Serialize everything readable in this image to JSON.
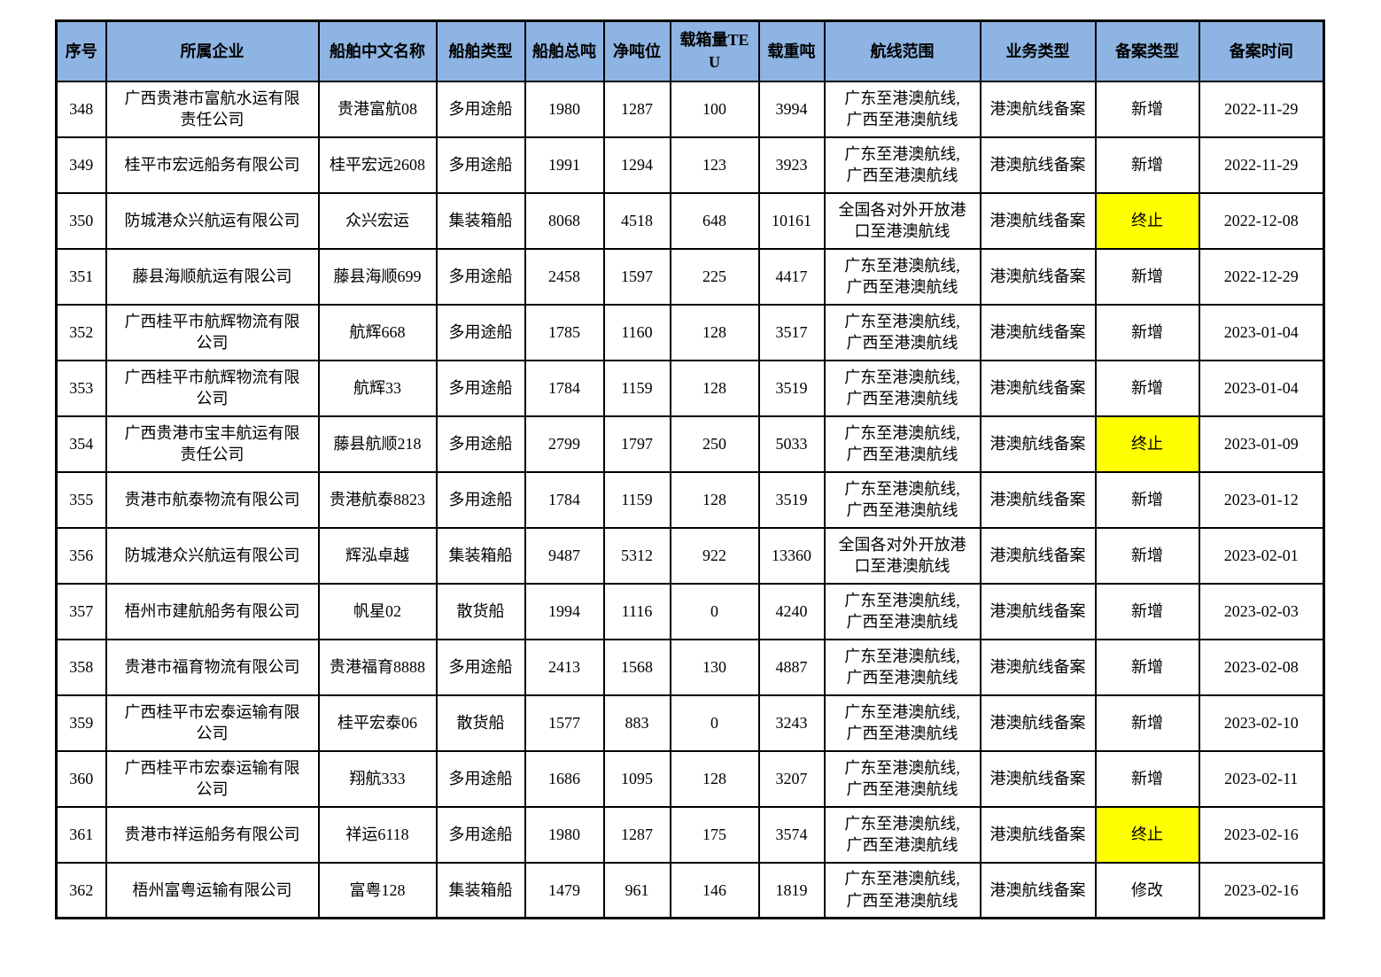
{
  "colors": {
    "header_bg": "#8DB4E2",
    "highlight": "#FFFF00",
    "border": "#000000",
    "text": "#000000",
    "page_bg": "#FFFFFF"
  },
  "table": {
    "headers": [
      "序号",
      "所属企业",
      "船舶中文名称",
      "船舶类型",
      "船舶总吨",
      "净吨位",
      "载箱量TEU",
      "载重吨",
      "航线范围",
      "业务类型",
      "备案类型",
      "备案时间"
    ],
    "column_keys": [
      "seq",
      "company",
      "ship_name",
      "ship_type",
      "gross",
      "net",
      "teu",
      "deadweight",
      "route",
      "business_type",
      "filing_type",
      "filing_date"
    ],
    "rows": [
      {
        "seq": "348",
        "company": "广西贵港市富航水运有限\n责任公司",
        "ship_name": "贵港富航08",
        "ship_type": "多用途船",
        "gross": "1980",
        "net": "1287",
        "teu": "100",
        "deadweight": "3994",
        "route": "广东至港澳航线,\n广西至港澳航线",
        "business_type": "港澳航线备案",
        "filing_type": "新增",
        "filing_highlight": false,
        "filing_date": "2022-11-29"
      },
      {
        "seq": "349",
        "company": "桂平市宏远船务有限公司",
        "ship_name": "桂平宏远2608",
        "ship_type": "多用途船",
        "gross": "1991",
        "net": "1294",
        "teu": "123",
        "deadweight": "3923",
        "route": "广东至港澳航线,\n广西至港澳航线",
        "business_type": "港澳航线备案",
        "filing_type": "新增",
        "filing_highlight": false,
        "filing_date": "2022-11-29"
      },
      {
        "seq": "350",
        "company": "防城港众兴航运有限公司",
        "ship_name": "众兴宏运",
        "ship_type": "集装箱船",
        "gross": "8068",
        "net": "4518",
        "teu": "648",
        "deadweight": "10161",
        "route": "全国各对外开放港\n口至港澳航线",
        "business_type": "港澳航线备案",
        "filing_type": "终止",
        "filing_highlight": true,
        "filing_date": "2022-12-08"
      },
      {
        "seq": "351",
        "company": "藤县海顺航运有限公司",
        "ship_name": "藤县海顺699",
        "ship_type": "多用途船",
        "gross": "2458",
        "net": "1597",
        "teu": "225",
        "deadweight": "4417",
        "route": "广东至港澳航线,\n广西至港澳航线",
        "business_type": "港澳航线备案",
        "filing_type": "新增",
        "filing_highlight": false,
        "filing_date": "2022-12-29"
      },
      {
        "seq": "352",
        "company": "广西桂平市航辉物流有限\n公司",
        "ship_name": "航辉668",
        "ship_type": "多用途船",
        "gross": "1785",
        "net": "1160",
        "teu": "128",
        "deadweight": "3517",
        "route": "广东至港澳航线,\n广西至港澳航线",
        "business_type": "港澳航线备案",
        "filing_type": "新增",
        "filing_highlight": false,
        "filing_date": "2023-01-04"
      },
      {
        "seq": "353",
        "company": "广西桂平市航辉物流有限\n公司",
        "ship_name": "航辉33",
        "ship_type": "多用途船",
        "gross": "1784",
        "net": "1159",
        "teu": "128",
        "deadweight": "3519",
        "route": "广东至港澳航线,\n广西至港澳航线",
        "business_type": "港澳航线备案",
        "filing_type": "新增",
        "filing_highlight": false,
        "filing_date": "2023-01-04"
      },
      {
        "seq": "354",
        "company": "广西贵港市宝丰航运有限\n责任公司",
        "ship_name": "藤县航顺218",
        "ship_type": "多用途船",
        "gross": "2799",
        "net": "1797",
        "teu": "250",
        "deadweight": "5033",
        "route": "广东至港澳航线,\n广西至港澳航线",
        "business_type": "港澳航线备案",
        "filing_type": "终止",
        "filing_highlight": true,
        "filing_date": "2023-01-09"
      },
      {
        "seq": "355",
        "company": "贵港市航泰物流有限公司",
        "ship_name": "贵港航泰8823",
        "ship_type": "多用途船",
        "gross": "1784",
        "net": "1159",
        "teu": "128",
        "deadweight": "3519",
        "route": "广东至港澳航线,\n广西至港澳航线",
        "business_type": "港澳航线备案",
        "filing_type": "新增",
        "filing_highlight": false,
        "filing_date": "2023-01-12"
      },
      {
        "seq": "356",
        "company": "防城港众兴航运有限公司",
        "ship_name": "辉泓卓越",
        "ship_type": "集装箱船",
        "gross": "9487",
        "net": "5312",
        "teu": "922",
        "deadweight": "13360",
        "route": "全国各对外开放港\n口至港澳航线",
        "business_type": "港澳航线备案",
        "filing_type": "新增",
        "filing_highlight": false,
        "filing_date": "2023-02-01"
      },
      {
        "seq": "357",
        "company": "梧州市建航船务有限公司",
        "ship_name": "帆星02",
        "ship_type": "散货船",
        "gross": "1994",
        "net": "1116",
        "teu": "0",
        "deadweight": "4240",
        "route": "广东至港澳航线,\n广西至港澳航线",
        "business_type": "港澳航线备案",
        "filing_type": "新增",
        "filing_highlight": false,
        "filing_date": "2023-02-03"
      },
      {
        "seq": "358",
        "company": "贵港市福育物流有限公司",
        "ship_name": "贵港福育8888",
        "ship_type": "多用途船",
        "gross": "2413",
        "net": "1568",
        "teu": "130",
        "deadweight": "4887",
        "route": "广东至港澳航线,\n广西至港澳航线",
        "business_type": "港澳航线备案",
        "filing_type": "新增",
        "filing_highlight": false,
        "filing_date": "2023-02-08"
      },
      {
        "seq": "359",
        "company": "广西桂平市宏泰运输有限\n公司",
        "ship_name": "桂平宏泰06",
        "ship_type": "散货船",
        "gross": "1577",
        "net": "883",
        "teu": "0",
        "deadweight": "3243",
        "route": "广东至港澳航线,\n广西至港澳航线",
        "business_type": "港澳航线备案",
        "filing_type": "新增",
        "filing_highlight": false,
        "filing_date": "2023-02-10"
      },
      {
        "seq": "360",
        "company": "广西桂平市宏泰运输有限\n公司",
        "ship_name": "翔航333",
        "ship_type": "多用途船",
        "gross": "1686",
        "net": "1095",
        "teu": "128",
        "deadweight": "3207",
        "route": "广东至港澳航线,\n广西至港澳航线",
        "business_type": "港澳航线备案",
        "filing_type": "新增",
        "filing_highlight": false,
        "filing_date": "2023-02-11"
      },
      {
        "seq": "361",
        "company": "贵港市祥运船务有限公司",
        "ship_name": "祥运6118",
        "ship_type": "多用途船",
        "gross": "1980",
        "net": "1287",
        "teu": "175",
        "deadweight": "3574",
        "route": "广东至港澳航线,\n广西至港澳航线",
        "business_type": "港澳航线备案",
        "filing_type": "终止",
        "filing_highlight": true,
        "filing_date": "2023-02-16"
      },
      {
        "seq": "362",
        "company": "梧州富粤运输有限公司",
        "ship_name": "富粤128",
        "ship_type": "集装箱船",
        "gross": "1479",
        "net": "961",
        "teu": "146",
        "deadweight": "1819",
        "route": "广东至港澳航线,\n广西至港澳航线",
        "business_type": "港澳航线备案",
        "filing_type": "修改",
        "filing_highlight": false,
        "filing_date": "2023-02-16"
      }
    ]
  }
}
